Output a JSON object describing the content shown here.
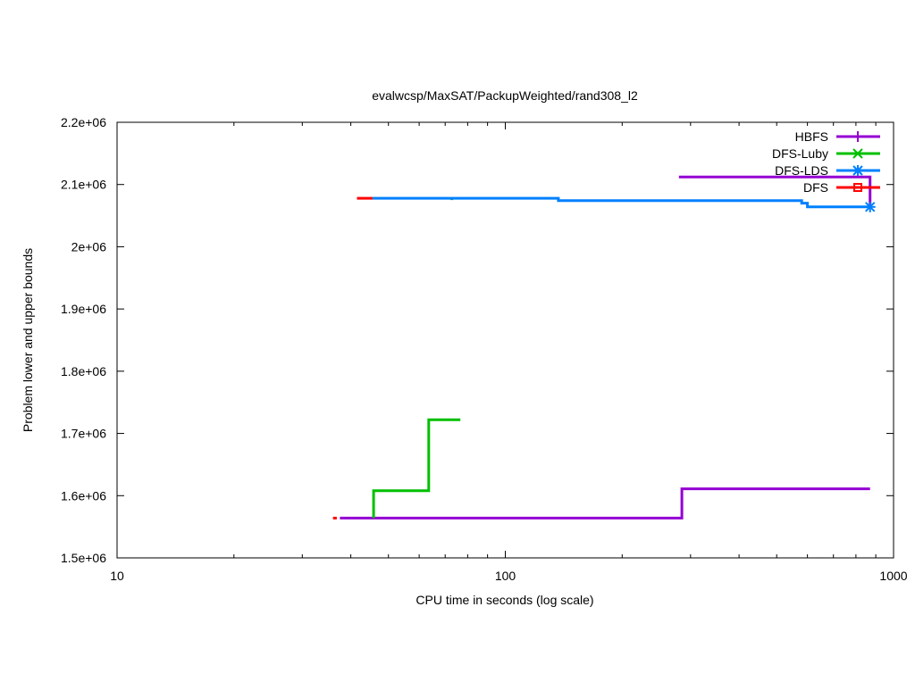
{
  "chart_data": {
    "type": "line",
    "title": "evalwcsp/MaxSAT/PackupWeighted/rand308_l2",
    "xlabel": "CPU time in seconds (log scale)",
    "ylabel": "Problem lower and upper bounds",
    "x_scale": "log",
    "xlim": [
      10,
      1000
    ],
    "ylim": [
      1500000,
      2200000
    ],
    "x_ticks": [
      {
        "value": 10,
        "label": "10"
      },
      {
        "value": 100,
        "label": "100"
      },
      {
        "value": 1000,
        "label": "1000"
      }
    ],
    "y_ticks": [
      {
        "value": 1500000,
        "label": "1.5e+06"
      },
      {
        "value": 1600000,
        "label": "1.6e+06"
      },
      {
        "value": 1700000,
        "label": "1.7e+06"
      },
      {
        "value": 1800000,
        "label": "1.8e+06"
      },
      {
        "value": 1900000,
        "label": "1.9e+06"
      },
      {
        "value": 2000000,
        "label": "2e+06"
      },
      {
        "value": 2100000,
        "label": "2.1e+06"
      },
      {
        "value": 2200000,
        "label": "2.2e+06"
      }
    ],
    "grid": false,
    "legend_position": "top-right",
    "series": [
      {
        "name": "HBFS",
        "color": "#9400d3",
        "marker": "plus",
        "paths": [
          {
            "role": "upper",
            "points": [
              [
                280,
                2112000
              ],
              [
                870,
                2112000
              ],
              [
                870,
                2063000
              ]
            ]
          },
          {
            "role": "lower",
            "points": [
              [
                37.5,
                1564000
              ],
              [
                285,
                1564000
              ],
              [
                285,
                1611000
              ],
              [
                870,
                1611000
              ]
            ]
          }
        ],
        "end_marker": null
      },
      {
        "name": "DFS-Luby",
        "color": "#00c000",
        "marker": "x",
        "paths": [
          {
            "role": "upper",
            "points": [
              [
                72.8,
                2078000
              ],
              [
                72.8,
                2075000
              ]
            ]
          },
          {
            "role": "lower",
            "points": [
              [
                45.8,
                1564000
              ],
              [
                45.8,
                1608000
              ],
              [
                63.5,
                1608000
              ],
              [
                63.5,
                1722000
              ],
              [
                76.6,
                1722000
              ]
            ]
          }
        ],
        "end_marker": null
      },
      {
        "name": "DFS-LDS",
        "color": "#0080ff",
        "marker": "star",
        "paths": [
          {
            "role": "upper",
            "points": [
              [
                45.5,
                2078000
              ],
              [
                137,
                2078000
              ],
              [
                137,
                2074000
              ],
              [
                580,
                2074000
              ],
              [
                580,
                2070000
              ],
              [
                600,
                2070000
              ],
              [
                600,
                2064000
              ],
              [
                870,
                2064000
              ]
            ]
          }
        ],
        "end_marker": [
          870,
          2064000
        ]
      },
      {
        "name": "DFS",
        "color": "#ff0000",
        "marker": "square",
        "paths": [
          {
            "role": "upper",
            "points": [
              [
                41.5,
                2078000
              ],
              [
                45.5,
                2078000
              ]
            ]
          },
          {
            "role": "lower",
            "points": [
              [
                36,
                1564000
              ],
              [
                36.8,
                1564000
              ]
            ]
          }
        ],
        "end_marker": null
      }
    ]
  }
}
